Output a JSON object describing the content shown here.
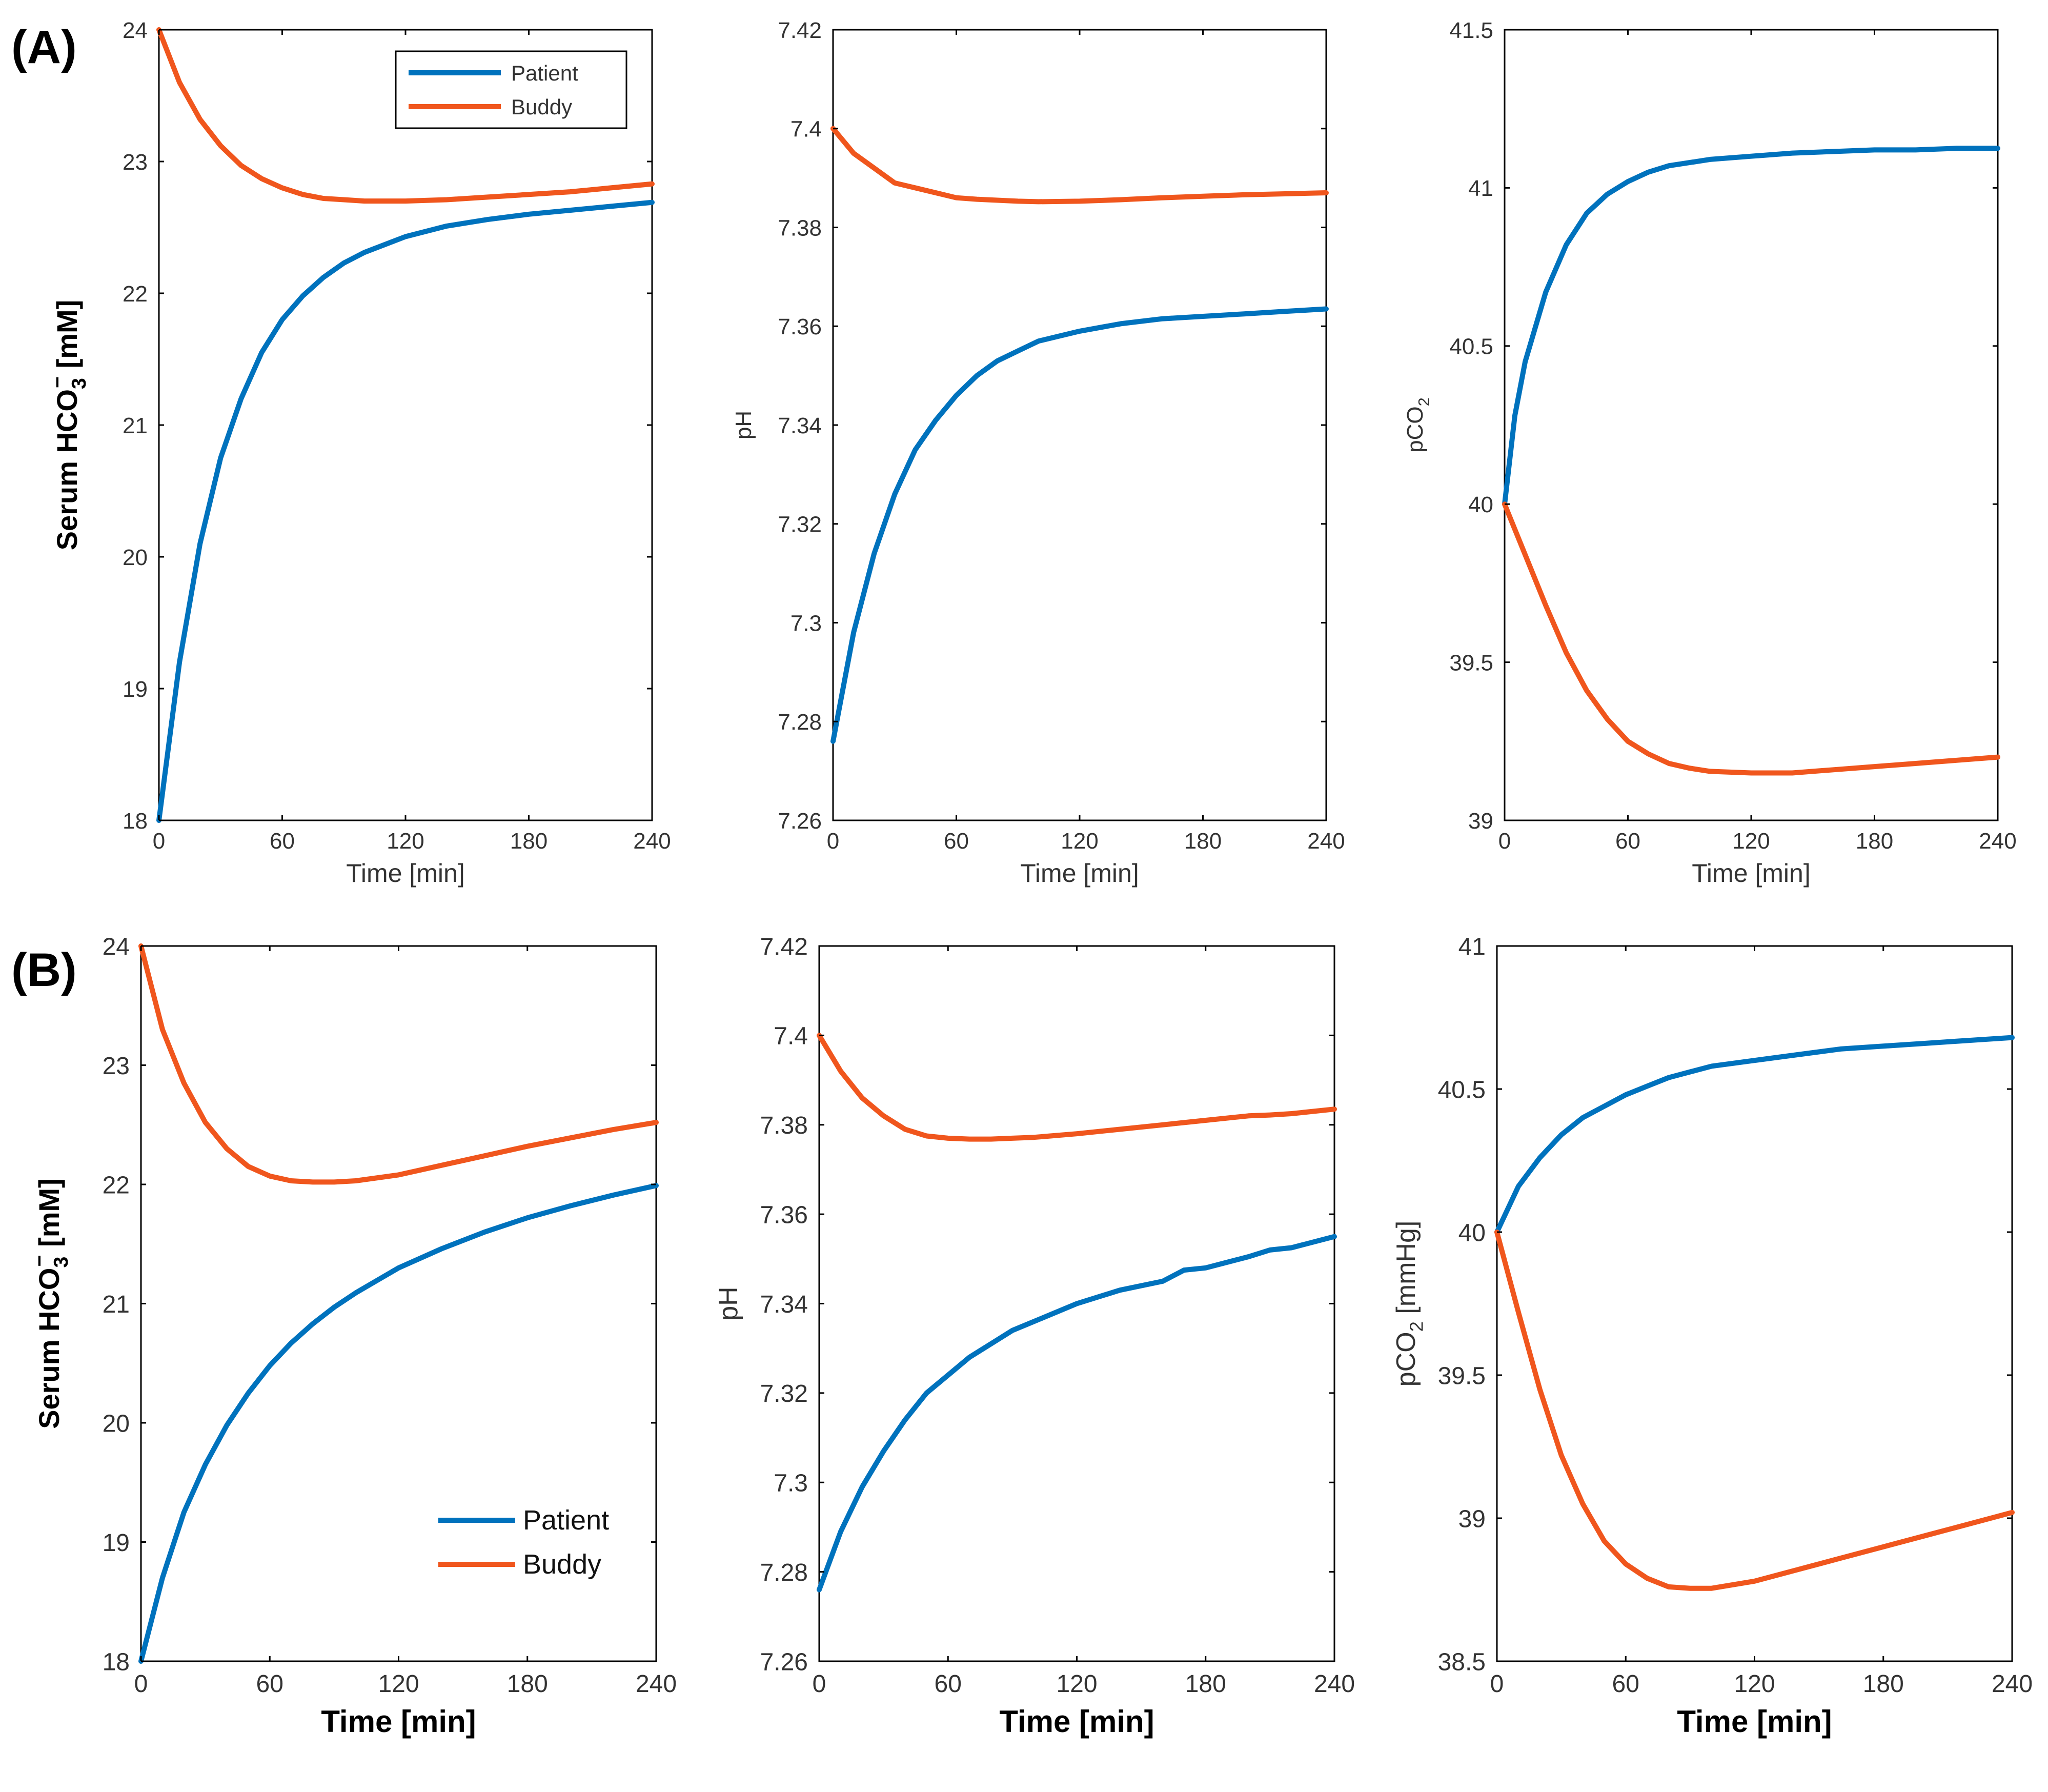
{
  "panel_labels": [
    "(A)",
    "(B)"
  ],
  "colors": {
    "patient": "#0072BD",
    "buddy": "#F0561D",
    "axis": "#000000",
    "text": "#333333"
  },
  "chart_data": [
    {
      "type": "line",
      "row": "A",
      "title": "",
      "xlabel": "Time [min]",
      "ylabel": "Serum HCO3- [mM]",
      "ylabel_parts": {
        "prefix": "Serum HCO",
        "sub": "3",
        "sup": "−",
        "suffix": "  [mM]"
      },
      "xlim": [
        0,
        240
      ],
      "ylim": [
        18,
        24
      ],
      "xticks": [
        0,
        60,
        120,
        180,
        240
      ],
      "yticks": [
        18,
        19,
        20,
        21,
        22,
        23,
        24
      ],
      "grid": false,
      "legend": "top-right",
      "x": [
        0,
        10,
        20,
        30,
        40,
        50,
        60,
        70,
        80,
        90,
        100,
        120,
        140,
        160,
        180,
        200,
        220,
        240
      ],
      "series": [
        {
          "name": "Patient",
          "values": [
            18.0,
            19.2,
            20.1,
            20.75,
            21.2,
            21.55,
            21.8,
            21.98,
            22.12,
            22.23,
            22.31,
            22.43,
            22.51,
            22.56,
            22.6,
            22.63,
            22.66,
            22.69
          ]
        },
        {
          "name": "Buddy",
          "values": [
            24.0,
            23.6,
            23.32,
            23.12,
            22.97,
            22.87,
            22.8,
            22.75,
            22.72,
            22.71,
            22.7,
            22.7,
            22.71,
            22.73,
            22.75,
            22.77,
            22.8,
            22.83
          ]
        }
      ]
    },
    {
      "type": "line",
      "row": "A",
      "title": "",
      "xlabel": "Time [min]",
      "ylabel": "pH",
      "ylabel_parts": {
        "prefix": "pH",
        "sub": "",
        "sup": "",
        "suffix": ""
      },
      "xlim": [
        0,
        240
      ],
      "ylim": [
        7.26,
        7.42
      ],
      "xticks": [
        0,
        60,
        120,
        180,
        240
      ],
      "yticks": [
        7.26,
        7.28,
        7.3,
        7.32,
        7.34,
        7.36,
        7.38,
        7.4,
        7.42
      ],
      "grid": false,
      "legend": "none",
      "x": [
        0,
        10,
        20,
        30,
        40,
        50,
        60,
        70,
        80,
        90,
        100,
        120,
        140,
        160,
        180,
        200,
        220,
        240
      ],
      "series": [
        {
          "name": "Patient",
          "values": [
            7.276,
            7.298,
            7.314,
            7.326,
            7.335,
            7.341,
            7.346,
            7.35,
            7.353,
            7.355,
            7.357,
            7.359,
            7.3605,
            7.3615,
            7.362,
            7.3625,
            7.363,
            7.3635
          ]
        },
        {
          "name": "Buddy",
          "values": [
            7.4,
            7.395,
            7.392,
            7.389,
            7.388,
            7.387,
            7.386,
            7.3857,
            7.3855,
            7.3853,
            7.3852,
            7.3853,
            7.3856,
            7.386,
            7.3863,
            7.3866,
            7.3868,
            7.387
          ]
        }
      ]
    },
    {
      "type": "line",
      "row": "A",
      "title": "",
      "xlabel": "Time [min]",
      "ylabel": "pCO2",
      "ylabel_parts": {
        "prefix": "pCO",
        "sub": "2",
        "sup": "",
        "suffix": ""
      },
      "xlim": [
        0,
        240
      ],
      "ylim": [
        39,
        41.5
      ],
      "xticks": [
        0,
        60,
        120,
        180,
        240
      ],
      "yticks": [
        39,
        39.5,
        40,
        40.5,
        41,
        41.5
      ],
      "grid": false,
      "legend": "none",
      "x": [
        0,
        5,
        10,
        20,
        30,
        40,
        50,
        60,
        70,
        80,
        90,
        100,
        120,
        140,
        160,
        180,
        200,
        220,
        240
      ],
      "series": [
        {
          "name": "Patient",
          "values": [
            40.0,
            40.28,
            40.45,
            40.67,
            40.82,
            40.92,
            40.98,
            41.02,
            41.05,
            41.07,
            41.08,
            41.09,
            41.1,
            41.11,
            41.115,
            41.12,
            41.12,
            41.125,
            41.125
          ]
        },
        {
          "name": "Buddy",
          "values": [
            40.0,
            39.92,
            39.84,
            39.68,
            39.53,
            39.41,
            39.32,
            39.25,
            39.21,
            39.18,
            39.165,
            39.155,
            39.15,
            39.15,
            39.16,
            39.17,
            39.18,
            39.19,
            39.2
          ]
        }
      ]
    },
    {
      "type": "line",
      "row": "B",
      "title": "",
      "xlabel": "Time [min]",
      "ylabel": "Serum HCO3- [mM]",
      "ylabel_parts": {
        "prefix": "Serum HCO",
        "sub": "3",
        "sup": "−",
        "suffix": "  [mM]"
      },
      "xlim": [
        0,
        240
      ],
      "ylim": [
        18,
        24
      ],
      "xticks": [
        0,
        60,
        120,
        180,
        240
      ],
      "yticks": [
        18,
        19,
        20,
        21,
        22,
        23,
        24
      ],
      "grid": false,
      "legend": "bottom-right",
      "x": [
        0,
        10,
        20,
        30,
        40,
        50,
        60,
        70,
        80,
        90,
        100,
        120,
        140,
        160,
        180,
        200,
        220,
        240
      ],
      "series": [
        {
          "name": "Patient",
          "values": [
            18.0,
            18.7,
            19.25,
            19.65,
            19.98,
            20.25,
            20.48,
            20.67,
            20.83,
            20.97,
            21.09,
            21.3,
            21.46,
            21.6,
            21.72,
            21.82,
            21.91,
            21.99
          ]
        },
        {
          "name": "Buddy",
          "values": [
            24.0,
            23.3,
            22.85,
            22.52,
            22.3,
            22.15,
            22.07,
            22.03,
            22.02,
            22.02,
            22.03,
            22.08,
            22.16,
            22.24,
            22.32,
            22.39,
            22.46,
            22.52
          ]
        }
      ]
    },
    {
      "type": "line",
      "row": "B",
      "title": "",
      "xlabel": "Time [min]",
      "ylabel": "pH",
      "ylabel_parts": {
        "prefix": "pH",
        "sub": "",
        "sup": "",
        "suffix": ""
      },
      "xlim": [
        0,
        240
      ],
      "ylim": [
        7.26,
        7.42
      ],
      "xticks": [
        0,
        60,
        120,
        180,
        240
      ],
      "yticks": [
        7.26,
        7.28,
        7.3,
        7.32,
        7.34,
        7.36,
        7.38,
        7.4,
        7.42
      ],
      "grid": false,
      "legend": "none",
      "x": [
        0,
        10,
        20,
        30,
        40,
        50,
        60,
        70,
        80,
        90,
        100,
        120,
        140,
        160,
        170,
        180,
        200,
        210,
        220,
        240
      ],
      "series": [
        {
          "name": "Patient",
          "values": [
            7.276,
            7.289,
            7.299,
            7.307,
            7.314,
            7.32,
            7.324,
            7.328,
            7.331,
            7.334,
            7.336,
            7.34,
            7.343,
            7.345,
            7.3475,
            7.348,
            7.3505,
            7.352,
            7.3525,
            7.355
          ]
        },
        {
          "name": "Buddy",
          "values": [
            7.4,
            7.392,
            7.386,
            7.382,
            7.379,
            7.3775,
            7.377,
            7.3768,
            7.3768,
            7.377,
            7.3772,
            7.378,
            7.379,
            7.38,
            7.3805,
            7.381,
            7.382,
            7.3822,
            7.3825,
            7.3835
          ]
        }
      ]
    },
    {
      "type": "line",
      "row": "B",
      "title": "",
      "xlabel": "Time [min]",
      "ylabel": "pCO2 [mmHg]",
      "ylabel_parts": {
        "prefix": "pCO",
        "sub": "2",
        "sup": "",
        "suffix": " [mmHg]"
      },
      "xlim": [
        0,
        240
      ],
      "ylim": [
        38.5,
        41
      ],
      "xticks": [
        0,
        60,
        120,
        180,
        240
      ],
      "yticks": [
        38.5,
        39,
        39.5,
        40,
        40.5,
        41
      ],
      "grid": false,
      "legend": "none",
      "x": [
        0,
        10,
        20,
        30,
        40,
        50,
        60,
        70,
        80,
        90,
        100,
        120,
        140,
        160,
        180,
        200,
        220,
        240
      ],
      "series": [
        {
          "name": "Patient",
          "values": [
            40.0,
            40.16,
            40.26,
            40.34,
            40.4,
            40.44,
            40.48,
            40.51,
            40.54,
            40.56,
            40.58,
            40.6,
            40.62,
            40.64,
            40.65,
            40.66,
            40.67,
            40.68
          ]
        },
        {
          "name": "Buddy",
          "values": [
            40.0,
            39.72,
            39.45,
            39.22,
            39.05,
            38.92,
            38.84,
            38.79,
            38.76,
            38.755,
            38.755,
            38.78,
            38.82,
            38.86,
            38.9,
            38.94,
            38.98,
            39.02
          ]
        }
      ]
    }
  ]
}
